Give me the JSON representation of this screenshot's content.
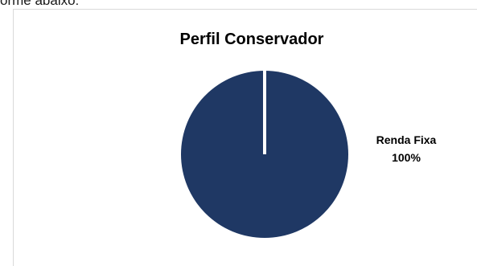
{
  "page": {
    "top_text": "orme abaixo:"
  },
  "chart_data": {
    "type": "pie",
    "title": "Perfil Conservador",
    "categories": [
      "Renda Fixa"
    ],
    "values": [
      100
    ],
    "value_labels": [
      "100%"
    ],
    "colors": [
      "#1f3864"
    ],
    "legend": false
  }
}
